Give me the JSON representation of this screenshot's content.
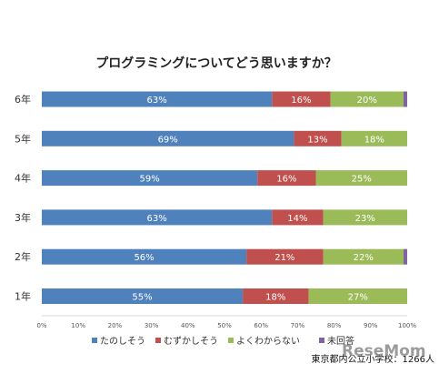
{
  "chart_data": {
    "type": "bar",
    "orientation": "horizontal",
    "stacked": true,
    "title": "プログラミングについてどう思いますか？",
    "categories": [
      "6年",
      "5年",
      "4年",
      "3年",
      "2年",
      "1年"
    ],
    "series": [
      {
        "name": "たのしそう",
        "color": "#4f81bd",
        "values": [
          63,
          69,
          59,
          63,
          56,
          55
        ],
        "labels": [
          "63%",
          "69%",
          "59%",
          "63%",
          "56%",
          "55%"
        ]
      },
      {
        "name": "むずかしそう",
        "color": "#c0504d",
        "values": [
          16,
          13,
          16,
          14,
          21,
          18
        ],
        "labels": [
          "16%",
          "13%",
          "16%",
          "14%",
          "21%",
          "18%"
        ]
      },
      {
        "name": "よくわからない",
        "color": "#9bbb59",
        "values": [
          20,
          18,
          25,
          23,
          22,
          27
        ],
        "labels": [
          "20%",
          "18%",
          "25%",
          "23%",
          "22%",
          "27%"
        ]
      },
      {
        "name": "未回答",
        "color": "#8064a2",
        "values": [
          1,
          0,
          0,
          0,
          1,
          0
        ],
        "labels": [
          "",
          "",
          "",
          "",
          "",
          ""
        ]
      }
    ],
    "xlim": [
      0,
      100
    ],
    "xticks": [
      "0%",
      "10%",
      "20%",
      "30%",
      "40%",
      "50%",
      "60%",
      "70%",
      "80%",
      "90%",
      "100%"
    ],
    "legend_position": "bottom",
    "grid": false
  },
  "footer": {
    "source": "東京都内公立小学校：1266人",
    "logo": "ReseMom"
  }
}
